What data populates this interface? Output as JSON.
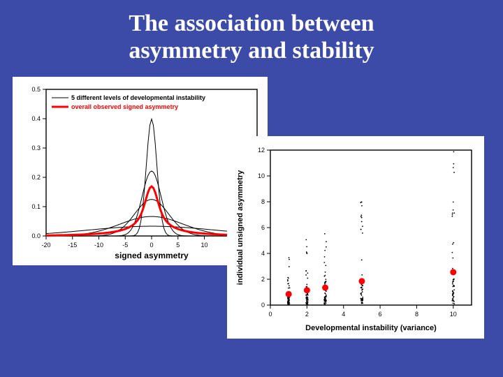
{
  "title_line1": "The association between",
  "title_line2": "asymmetry and stability",
  "background_color": "#3d4ba8",
  "panel_bg": "#ffffff",
  "left_chart": {
    "type": "line",
    "xlabel": "signed asymmetry",
    "xlim": [
      -20,
      20
    ],
    "xtick_step": 5,
    "ylim": [
      0,
      0.5
    ],
    "ytick_step": 0.1,
    "axis_label_fontsize": 12,
    "tick_fontsize": 9,
    "axis_color": "#000000",
    "legend": {
      "items": [
        {
          "label": "5 different levels of developmental instability",
          "color": "#000000",
          "weight": 1
        },
        {
          "label": "overall observed signed asymmetry",
          "color": "#ff0000",
          "weight": 3
        }
      ],
      "fontsize": 9
    },
    "thin_curves": {
      "color": "#000000",
      "line_width": 1,
      "sigmas": [
        1.0,
        1.8,
        3.2,
        6.0,
        12.0
      ]
    },
    "thick_curve": {
      "color": "#ff0000",
      "line_width": 3,
      "sigmas": [
        1.0,
        1.8,
        3.2,
        6.0,
        12.0
      ]
    },
    "x_samples": 121
  },
  "right_chart": {
    "type": "scatter",
    "xlabel": "Developmental instability (variance)",
    "ylabel": "individual unsigned asymmetry",
    "xlim": [
      0,
      11
    ],
    "xtick_step": 2,
    "ylim": [
      0,
      12
    ],
    "ytick_step": 2,
    "axis_label_fontsize": 11,
    "tick_fontsize": 9,
    "axis_color": "#000000",
    "columns": [
      {
        "x": 1,
        "mean": 0.85,
        "spread_top": 3.8,
        "n": 55
      },
      {
        "x": 2,
        "mean": 1.15,
        "spread_top": 5.2,
        "n": 55
      },
      {
        "x": 3,
        "mean": 1.35,
        "spread_top": 6.3,
        "n": 55
      },
      {
        "x": 5,
        "mean": 1.85,
        "spread_top": 8.5,
        "n": 55
      },
      {
        "x": 10,
        "mean": 2.55,
        "spread_top": 12.0,
        "n": 55
      }
    ],
    "point_color": "#000000",
    "point_radius": 0.9,
    "mean_marker": {
      "color": "#ff0000",
      "radius": 4.5
    }
  }
}
